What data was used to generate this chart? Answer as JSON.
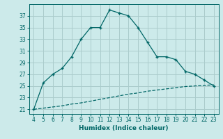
{
  "xlabel": "Humidex (Indice chaleur)",
  "background_color": "#cceaea",
  "grid_color": "#aacccc",
  "line_color": "#006666",
  "x_main": [
    4,
    5,
    6,
    7,
    8,
    9,
    10,
    11,
    12,
    13,
    14,
    15,
    16,
    17,
    18,
    19,
    20,
    21,
    22,
    23
  ],
  "y_main": [
    21,
    25.5,
    27,
    28,
    30,
    33,
    35,
    35,
    38,
    37.5,
    37,
    35,
    32.5,
    30,
    30,
    29.5,
    27.5,
    27,
    26,
    25
  ],
  "x_ref": [
    4,
    5,
    6,
    7,
    8,
    9,
    10,
    11,
    12,
    13,
    14,
    15,
    16,
    17,
    18,
    19,
    20,
    21,
    22,
    23
  ],
  "y_ref": [
    21.0,
    21.2,
    21.4,
    21.6,
    21.9,
    22.1,
    22.4,
    22.7,
    23.0,
    23.3,
    23.6,
    23.8,
    24.1,
    24.3,
    24.5,
    24.7,
    24.9,
    25.0,
    25.1,
    25.2
  ],
  "xlim": [
    3.5,
    23.5
  ],
  "ylim": [
    20.2,
    39.0
  ],
  "yticks": [
    21,
    23,
    25,
    27,
    29,
    31,
    33,
    35,
    37
  ],
  "xticks": [
    4,
    5,
    6,
    7,
    8,
    9,
    10,
    11,
    12,
    13,
    14,
    15,
    16,
    17,
    18,
    19,
    20,
    21,
    22,
    23
  ]
}
